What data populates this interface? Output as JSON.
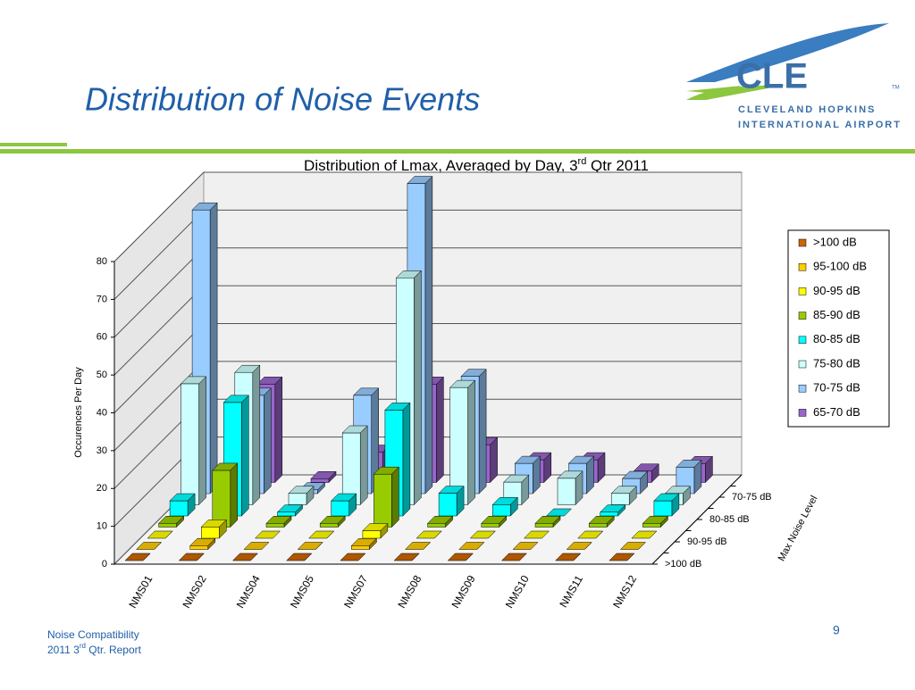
{
  "header": {
    "title": "Distribution of Noise Events",
    "logo_name": "CLE",
    "logo_tm": "TM",
    "logo_line1": "CLEVELAND HOPKINS",
    "logo_line2": "INTERNATIONAL AIRPORT"
  },
  "chart_data": {
    "type": "bar3d",
    "title": "Distribution of Lmax, Averaged by Day, 3",
    "title_sup": "rd",
    "title_end": " Qtr 2011",
    "y_label": "Occurences Per Day",
    "z_label": "Max Noise Level",
    "categories": [
      "NMS01",
      "NMS02",
      "NMS04",
      "NMS05",
      "NMS07",
      "NMS08",
      "NMS09",
      "NMS10",
      "NMS11",
      "NMS12"
    ],
    "z_categories": [
      ">100 dB",
      null,
      "90-95 dB",
      null,
      "80-85 dB",
      null,
      "70-75 dB",
      null
    ],
    "ylim": [
      0,
      80
    ],
    "yticks": [
      0,
      10,
      20,
      30,
      40,
      50,
      60,
      70,
      80
    ],
    "grid": true,
    "legend": "right",
    "series": [
      {
        "name": ">100 dB",
        "color": "#cc6600",
        "values": [
          0,
          0,
          0,
          0,
          0,
          0,
          0,
          0,
          0,
          0
        ]
      },
      {
        "name": "95-100 dB",
        "color": "#ffcc00",
        "values": [
          0,
          1,
          0,
          0,
          1,
          0,
          0,
          0,
          0,
          0
        ]
      },
      {
        "name": "90-95 dB",
        "color": "#ffff00",
        "values": [
          0,
          3,
          0,
          0,
          2,
          0,
          0,
          0,
          0,
          0
        ]
      },
      {
        "name": "85-90 dB",
        "color": "#99cc00",
        "values": [
          1,
          15,
          1,
          1,
          14,
          1,
          1,
          1,
          1,
          1
        ]
      },
      {
        "name": "80-85 dB",
        "color": "#00ffff",
        "values": [
          4,
          30,
          1,
          4,
          28,
          6,
          3,
          0,
          1,
          4
        ]
      },
      {
        "name": "75-80 dB",
        "color": "#ccffff",
        "values": [
          32,
          35,
          3,
          19,
          60,
          31,
          6,
          7,
          3,
          3
        ]
      },
      {
        "name": "70-75 dB",
        "color": "#99ccff",
        "values": [
          75,
          26,
          1,
          26,
          82,
          31,
          8,
          8,
          4,
          7
        ]
      },
      {
        "name": "65-70 dB",
        "color": "#9966cc",
        "values": [
          1,
          26,
          1,
          8,
          26,
          10,
          6,
          6,
          3,
          5
        ]
      }
    ]
  },
  "footer": {
    "line1": "Noise Compatibility",
    "line2a": "2011 3",
    "line2sup": "rd",
    "line2b": " Qtr. Report",
    "page": "9"
  }
}
